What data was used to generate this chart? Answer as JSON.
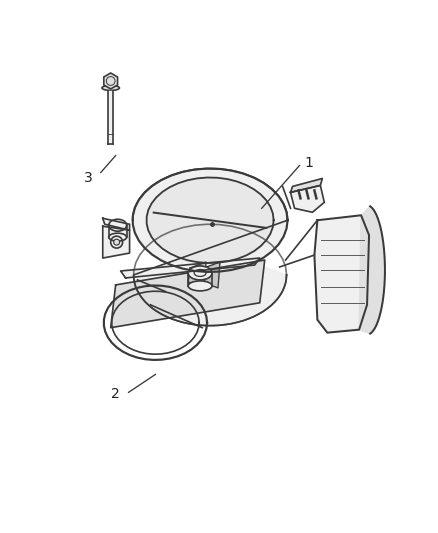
{
  "background_color": "#ffffff",
  "figsize": [
    4.38,
    5.33
  ],
  "dpi": 100,
  "label_1": "1",
  "label_2": "2",
  "label_3": "3",
  "line_color": "#3a3a3a",
  "fill_light": "#f0f0f0",
  "fill_mid": "#e0e0e0",
  "fill_dark": "#c8c8c8",
  "label_color": "#222222",
  "label_fontsize": 10,
  "lw_main": 1.2,
  "lw_thin": 0.7,
  "lw_thick": 1.6
}
